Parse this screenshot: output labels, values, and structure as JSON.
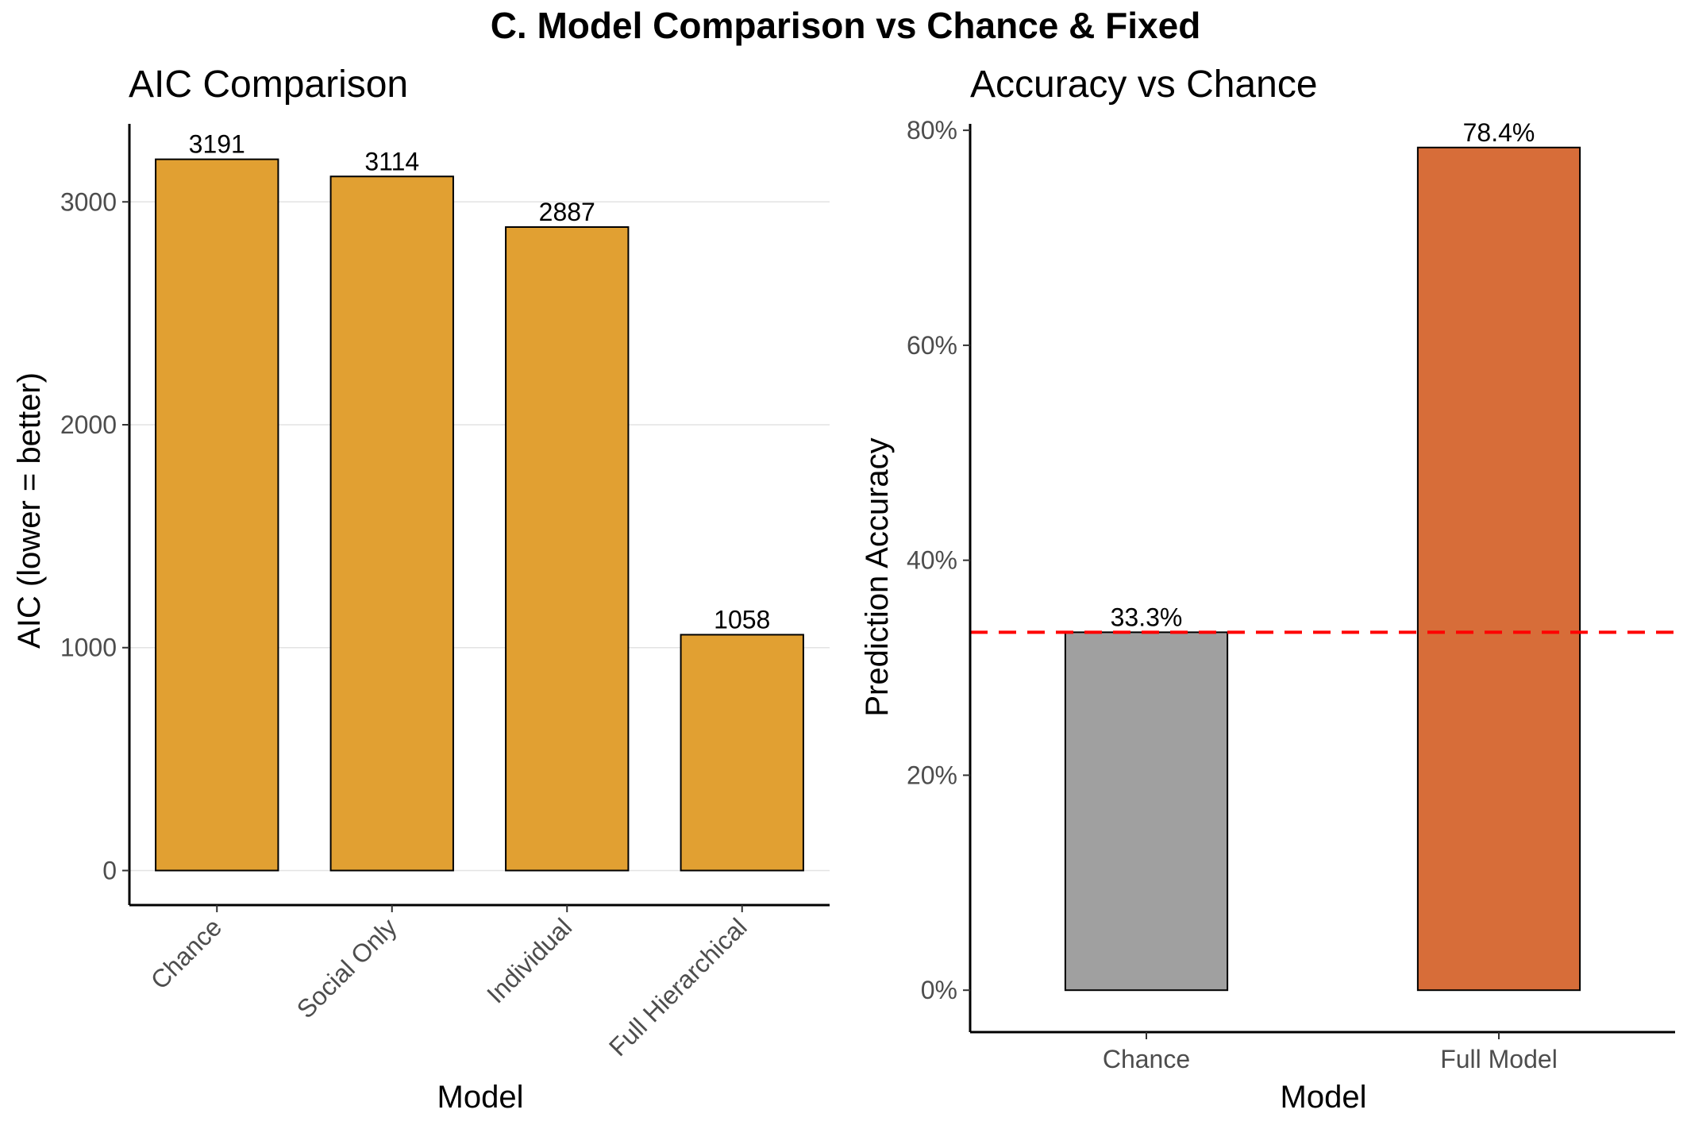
{
  "page_title": "C. Model Comparison vs Chance & Fixed",
  "chart_data": [
    {
      "type": "bar",
      "title": "AIC Comparison",
      "xlabel": "Model",
      "ylabel": "AIC (lower = better)",
      "categories": [
        "Chance",
        "Social Only",
        "Individual",
        "Full Hierarchical"
      ],
      "values": [
        3191,
        3114,
        2887,
        1058
      ],
      "data_labels": [
        "3191",
        "3114",
        "2887",
        "1058"
      ],
      "ylim": [
        -155,
        3350
      ],
      "yticks": [
        0,
        1000,
        2000,
        3000
      ],
      "ytick_labels": [
        "0",
        "1000",
        "2000",
        "3000"
      ],
      "grid": "horizontal major",
      "bar_color": "#E1A032"
    },
    {
      "type": "bar",
      "title": "Accuracy vs Chance",
      "xlabel": "Model",
      "ylabel": "Prediction Accuracy",
      "categories": [
        "Chance",
        "Full Model"
      ],
      "values": [
        0.333,
        0.784
      ],
      "data_labels": [
        "33.3%",
        "78.4%"
      ],
      "ylim": [
        -0.039,
        0.806
      ],
      "yticks": [
        0,
        0.2,
        0.4,
        0.6,
        0.8
      ],
      "ytick_labels": [
        "0%",
        "20%",
        "40%",
        "60%",
        "80%"
      ],
      "grid": "none",
      "bar_colors": [
        "#A0A0A0",
        "#D76D39"
      ],
      "reference_line": {
        "y": 0.333,
        "style": "dashed",
        "color": "#FF0000"
      }
    }
  ]
}
